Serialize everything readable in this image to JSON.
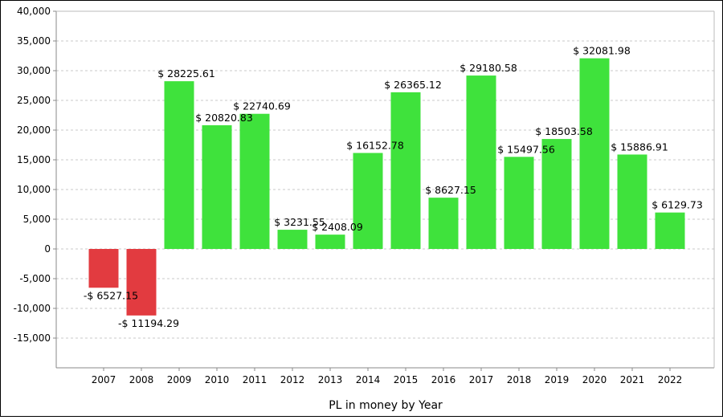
{
  "chart_data": {
    "type": "bar",
    "title": "",
    "xlabel": "PL in money by Year",
    "ylabel": "",
    "categories": [
      "2007",
      "2008",
      "2009",
      "2010",
      "2011",
      "2012",
      "2013",
      "2014",
      "2015",
      "2016",
      "2017",
      "2018",
      "2019",
      "2020",
      "2021",
      "2022"
    ],
    "values": [
      -6527.15,
      -11194.29,
      28225.61,
      20820.83,
      22740.69,
      3231.55,
      2408.09,
      16152.78,
      26365.12,
      8627.15,
      29180.58,
      15497.56,
      18503.58,
      32081.98,
      15886.91,
      6129.73
    ],
    "data_labels": [
      "-$ 6527.15",
      "-$ 11194.29",
      "$ 28225.61",
      "$ 20820.83",
      "$ 22740.69",
      "$ 3231.55",
      "$ 2408.09",
      "$ 16152.78",
      "$ 26365.12",
      "$ 8627.15",
      "$ 29180.58",
      "$ 15497.56",
      "$ 18503.58",
      "$ 32081.98",
      "$ 15886.91",
      "$ 6129.73"
    ],
    "ylim": [
      -20000,
      40000
    ],
    "yticks": [
      -15000,
      -10000,
      -5000,
      0,
      5000,
      10000,
      15000,
      20000,
      25000,
      30000,
      35000,
      40000
    ],
    "ytick_labels": [
      "-15,000",
      "-10,000",
      "-5,000",
      "0",
      "5,000",
      "10,000",
      "15,000",
      "20,000",
      "25,000",
      "30,000",
      "35,000",
      "40,000"
    ],
    "grid": true,
    "colors": {
      "positive": "#3fe23c",
      "negative": "#e23b40",
      "grid": "#c8c8c8"
    }
  }
}
